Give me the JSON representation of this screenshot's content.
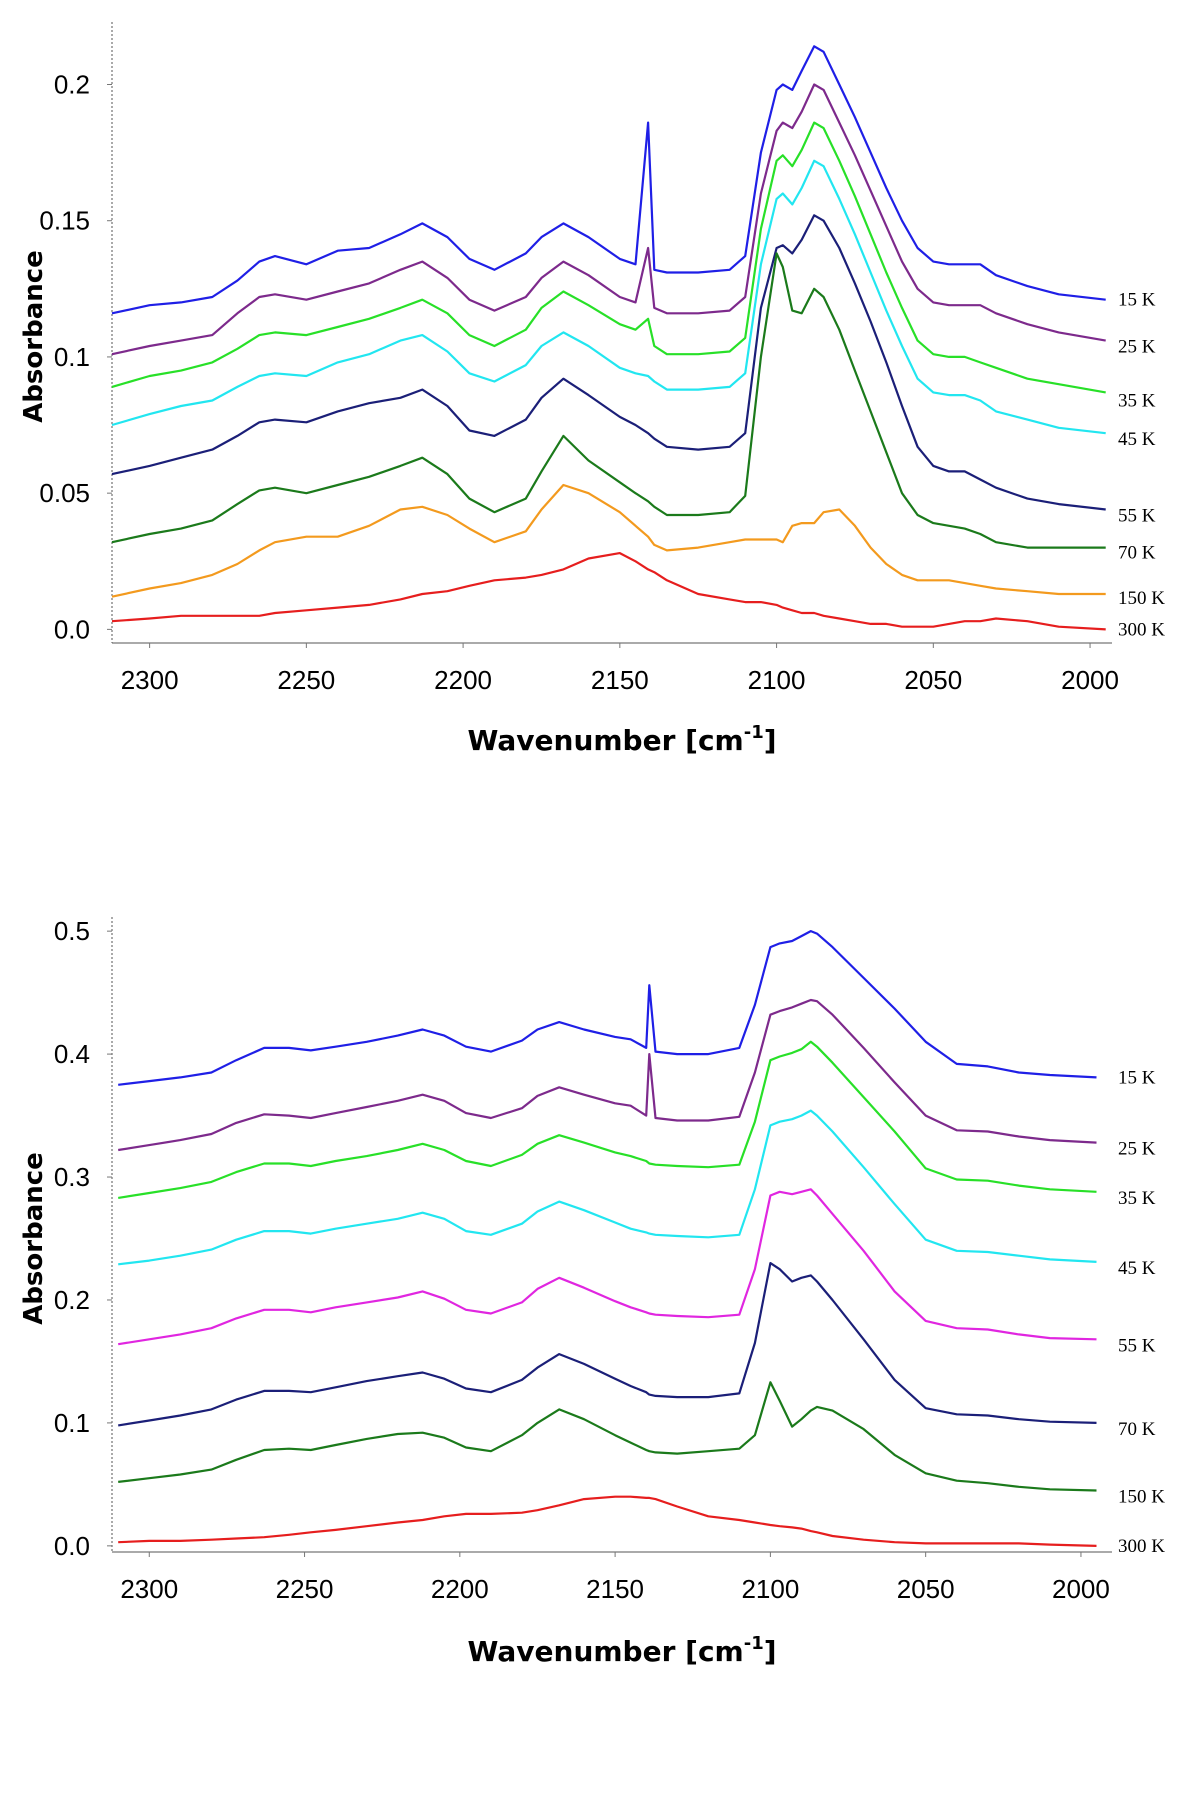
{
  "chart_data": [
    {
      "type": "line",
      "panel": "top",
      "xlabel": "Wavenumber [cm-1]",
      "xlabel_main": "Wavenumber [cm",
      "xlabel_sup": "-1",
      "xlabel_end": "]",
      "ylabel": "Absorbance",
      "xlim": [
        2312,
        1993
      ],
      "ylim": [
        -0.005,
        0.22
      ],
      "x_ticks": [
        2300,
        2250,
        2200,
        2150,
        2100,
        2050,
        2000
      ],
      "x_tick_labels": [
        "2300",
        "2250",
        "2200",
        "2150",
        "2100",
        "2050",
        "2000"
      ],
      "y_ticks": [
        0.0,
        0.05,
        0.1,
        0.15,
        0.2
      ],
      "y_tick_labels": [
        "0.0",
        "0.05",
        "0.1",
        "0.15",
        "0.2"
      ],
      "x": [
        2312,
        2300,
        2290,
        2280,
        2272,
        2265,
        2260,
        2250,
        2240,
        2230,
        2220,
        2213,
        2205,
        2198,
        2190,
        2180,
        2175,
        2168,
        2160,
        2150,
        2145,
        2141,
        2139,
        2135,
        2125,
        2115,
        2110,
        2105,
        2100,
        2098,
        2095,
        2092,
        2088,
        2085,
        2080,
        2075,
        2070,
        2065,
        2060,
        2055,
        2050,
        2045,
        2040,
        2035,
        2030,
        2020,
        2010,
        1995
      ],
      "series": [
        {
          "name": "15 K",
          "label": "15 K",
          "color": "#1f1fe6",
          "values": [
            0.116,
            0.119,
            0.12,
            0.122,
            0.128,
            0.135,
            0.137,
            0.134,
            0.139,
            0.14,
            0.145,
            0.149,
            0.144,
            0.136,
            0.132,
            0.138,
            0.144,
            0.149,
            0.144,
            0.136,
            0.134,
            0.186,
            0.132,
            0.131,
            0.131,
            0.132,
            0.137,
            0.175,
            0.198,
            0.2,
            0.198,
            0.205,
            0.214,
            0.212,
            0.2,
            0.188,
            0.175,
            0.162,
            0.15,
            0.14,
            0.135,
            0.134,
            0.134,
            0.134,
            0.13,
            0.126,
            0.123,
            0.121
          ]
        },
        {
          "name": "25 K",
          "label": "25 K",
          "color": "#7d2a8c",
          "values": [
            0.101,
            0.104,
            0.106,
            0.108,
            0.116,
            0.122,
            0.123,
            0.121,
            0.124,
            0.127,
            0.132,
            0.135,
            0.129,
            0.121,
            0.117,
            0.122,
            0.129,
            0.135,
            0.13,
            0.122,
            0.12,
            0.14,
            0.118,
            0.116,
            0.116,
            0.117,
            0.122,
            0.16,
            0.183,
            0.186,
            0.184,
            0.19,
            0.2,
            0.198,
            0.186,
            0.174,
            0.161,
            0.148,
            0.135,
            0.125,
            0.12,
            0.119,
            0.119,
            0.119,
            0.116,
            0.112,
            0.109,
            0.106
          ]
        },
        {
          "name": "35 K",
          "label": "35 K",
          "color": "#28e028",
          "values": [
            0.089,
            0.093,
            0.095,
            0.098,
            0.103,
            0.108,
            0.109,
            0.108,
            0.111,
            0.114,
            0.118,
            0.121,
            0.116,
            0.108,
            0.104,
            0.11,
            0.118,
            0.124,
            0.119,
            0.112,
            0.11,
            0.114,
            0.104,
            0.101,
            0.101,
            0.102,
            0.107,
            0.147,
            0.172,
            0.174,
            0.17,
            0.176,
            0.186,
            0.184,
            0.172,
            0.159,
            0.145,
            0.131,
            0.118,
            0.106,
            0.101,
            0.1,
            0.1,
            0.098,
            0.096,
            0.092,
            0.09,
            0.087
          ]
        },
        {
          "name": "45 K",
          "label": "45 K",
          "color": "#22e6f0",
          "values": [
            0.075,
            0.079,
            0.082,
            0.084,
            0.089,
            0.093,
            0.094,
            0.093,
            0.098,
            0.101,
            0.106,
            0.108,
            0.102,
            0.094,
            0.091,
            0.097,
            0.104,
            0.109,
            0.104,
            0.096,
            0.094,
            0.093,
            0.091,
            0.088,
            0.088,
            0.089,
            0.094,
            0.134,
            0.158,
            0.16,
            0.156,
            0.162,
            0.172,
            0.17,
            0.158,
            0.145,
            0.131,
            0.117,
            0.104,
            0.092,
            0.087,
            0.086,
            0.086,
            0.084,
            0.08,
            0.077,
            0.074,
            0.072
          ]
        },
        {
          "name": "55 K",
          "label": "55 K",
          "color": "#1b1f78",
          "values": [
            0.057,
            0.06,
            0.063,
            0.066,
            0.071,
            0.076,
            0.077,
            0.076,
            0.08,
            0.083,
            0.085,
            0.088,
            0.082,
            0.073,
            0.071,
            0.077,
            0.085,
            0.092,
            0.086,
            0.078,
            0.075,
            0.072,
            0.07,
            0.067,
            0.066,
            0.067,
            0.072,
            0.118,
            0.14,
            0.141,
            0.138,
            0.143,
            0.152,
            0.15,
            0.14,
            0.127,
            0.113,
            0.098,
            0.082,
            0.067,
            0.06,
            0.058,
            0.058,
            0.055,
            0.052,
            0.048,
            0.046,
            0.044
          ]
        },
        {
          "name": "70 K",
          "label": "70 K",
          "color": "#1b7a1b",
          "values": [
            0.032,
            0.035,
            0.037,
            0.04,
            0.046,
            0.051,
            0.052,
            0.05,
            0.053,
            0.056,
            0.06,
            0.063,
            0.057,
            0.048,
            0.043,
            0.048,
            0.058,
            0.071,
            0.062,
            0.054,
            0.05,
            0.047,
            0.045,
            0.042,
            0.042,
            0.043,
            0.049,
            0.1,
            0.138,
            0.133,
            0.117,
            0.116,
            0.125,
            0.122,
            0.11,
            0.095,
            0.08,
            0.065,
            0.05,
            0.042,
            0.039,
            0.038,
            0.037,
            0.035,
            0.032,
            0.03,
            0.03,
            0.03
          ]
        },
        {
          "name": "150 K",
          "label": "150 K",
          "color": "#f39a1e",
          "values": [
            0.012,
            0.015,
            0.017,
            0.02,
            0.024,
            0.029,
            0.032,
            0.034,
            0.034,
            0.038,
            0.044,
            0.045,
            0.042,
            0.037,
            0.032,
            0.036,
            0.044,
            0.053,
            0.05,
            0.043,
            0.038,
            0.034,
            0.031,
            0.029,
            0.03,
            0.032,
            0.033,
            0.033,
            0.033,
            0.032,
            0.038,
            0.039,
            0.039,
            0.043,
            0.044,
            0.038,
            0.03,
            0.024,
            0.02,
            0.018,
            0.018,
            0.018,
            0.017,
            0.016,
            0.015,
            0.014,
            0.013,
            0.013
          ]
        },
        {
          "name": "300 K",
          "label": "300 K",
          "color": "#e61e1e",
          "values": [
            0.003,
            0.004,
            0.005,
            0.005,
            0.005,
            0.005,
            0.006,
            0.007,
            0.008,
            0.009,
            0.011,
            0.013,
            0.014,
            0.016,
            0.018,
            0.019,
            0.02,
            0.022,
            0.026,
            0.028,
            0.025,
            0.022,
            0.021,
            0.018,
            0.013,
            0.011,
            0.01,
            0.01,
            0.009,
            0.008,
            0.007,
            0.006,
            0.006,
            0.005,
            0.004,
            0.003,
            0.002,
            0.002,
            0.001,
            0.001,
            0.001,
            0.002,
            0.003,
            0.003,
            0.004,
            0.003,
            0.001,
            0.0
          ]
        }
      ]
    },
    {
      "type": "line",
      "panel": "bottom",
      "xlabel": "Wavenumber [cm-1]",
      "xlabel_main": "Wavenumber [cm",
      "xlabel_sup": "-1",
      "xlabel_end": "]",
      "ylabel": "Absorbance",
      "xlim": [
        2312,
        1990
      ],
      "ylim": [
        -0.005,
        0.505
      ],
      "x_ticks": [
        2300,
        2250,
        2200,
        2150,
        2100,
        2050,
        2000
      ],
      "x_tick_labels": [
        "2300",
        "2250",
        "2200",
        "2150",
        "2100",
        "2050",
        "2000"
      ],
      "y_ticks": [
        0.0,
        0.1,
        0.2,
        0.3,
        0.4,
        0.5
      ],
      "y_tick_labels": [
        "0.0",
        "0.1",
        "0.2",
        "0.3",
        "0.4",
        "0.5"
      ],
      "x": [
        2310,
        2300,
        2290,
        2280,
        2272,
        2263,
        2255,
        2248,
        2240,
        2230,
        2220,
        2212,
        2205,
        2198,
        2190,
        2180,
        2175,
        2168,
        2160,
        2150,
        2145,
        2140,
        2139,
        2137,
        2130,
        2120,
        2110,
        2105,
        2100,
        2097,
        2093,
        2090,
        2087,
        2085,
        2080,
        2070,
        2060,
        2050,
        2040,
        2030,
        2020,
        2010,
        1995
      ],
      "series": [
        {
          "name": "15 K",
          "label": "15 K",
          "color": "#1f1fe6",
          "values": [
            0.375,
            0.378,
            0.381,
            0.385,
            0.395,
            0.405,
            0.405,
            0.403,
            0.406,
            0.41,
            0.415,
            0.42,
            0.415,
            0.406,
            0.402,
            0.411,
            0.42,
            0.426,
            0.42,
            0.414,
            0.412,
            0.405,
            0.456,
            0.402,
            0.4,
            0.4,
            0.405,
            0.44,
            0.487,
            0.49,
            0.492,
            0.496,
            0.5,
            0.498,
            0.487,
            0.462,
            0.437,
            0.41,
            0.392,
            0.39,
            0.385,
            0.383,
            0.381
          ]
        },
        {
          "name": "25 K",
          "label": "25 K",
          "color": "#7d2a8c",
          "values": [
            0.322,
            0.326,
            0.33,
            0.335,
            0.344,
            0.351,
            0.35,
            0.348,
            0.352,
            0.357,
            0.362,
            0.367,
            0.362,
            0.352,
            0.348,
            0.356,
            0.366,
            0.373,
            0.367,
            0.36,
            0.358,
            0.35,
            0.4,
            0.348,
            0.346,
            0.346,
            0.349,
            0.385,
            0.432,
            0.435,
            0.438,
            0.441,
            0.444,
            0.443,
            0.432,
            0.405,
            0.377,
            0.35,
            0.338,
            0.337,
            0.333,
            0.33,
            0.328
          ]
        },
        {
          "name": "35 K",
          "label": "35 K",
          "color": "#28e028",
          "values": [
            0.283,
            0.287,
            0.291,
            0.296,
            0.304,
            0.311,
            0.311,
            0.309,
            0.313,
            0.317,
            0.322,
            0.327,
            0.322,
            0.313,
            0.309,
            0.318,
            0.327,
            0.334,
            0.328,
            0.32,
            0.317,
            0.313,
            0.311,
            0.31,
            0.309,
            0.308,
            0.31,
            0.345,
            0.395,
            0.398,
            0.401,
            0.404,
            0.41,
            0.406,
            0.393,
            0.365,
            0.337,
            0.307,
            0.298,
            0.297,
            0.293,
            0.29,
            0.288
          ]
        },
        {
          "name": "45 K",
          "label": "45 K",
          "color": "#22e6f0",
          "values": [
            0.229,
            0.232,
            0.236,
            0.241,
            0.249,
            0.256,
            0.256,
            0.254,
            0.258,
            0.262,
            0.266,
            0.271,
            0.266,
            0.256,
            0.253,
            0.262,
            0.272,
            0.28,
            0.273,
            0.263,
            0.258,
            0.255,
            0.254,
            0.253,
            0.252,
            0.251,
            0.253,
            0.29,
            0.342,
            0.345,
            0.347,
            0.35,
            0.354,
            0.35,
            0.337,
            0.308,
            0.278,
            0.249,
            0.24,
            0.239,
            0.236,
            0.233,
            0.231
          ]
        },
        {
          "name": "55 K",
          "label": "55 K",
          "color": "#e026e0",
          "values": [
            0.164,
            0.168,
            0.172,
            0.177,
            0.185,
            0.192,
            0.192,
            0.19,
            0.194,
            0.198,
            0.202,
            0.207,
            0.201,
            0.192,
            0.189,
            0.198,
            0.209,
            0.218,
            0.21,
            0.199,
            0.194,
            0.19,
            0.189,
            0.188,
            0.187,
            0.186,
            0.188,
            0.225,
            0.285,
            0.288,
            0.286,
            0.288,
            0.29,
            0.285,
            0.27,
            0.24,
            0.207,
            0.183,
            0.177,
            0.176,
            0.172,
            0.169,
            0.168
          ]
        },
        {
          "name": "70 K",
          "label": "70 K",
          "color": "#1b1f78",
          "values": [
            0.098,
            0.102,
            0.106,
            0.111,
            0.119,
            0.126,
            0.126,
            0.125,
            0.129,
            0.134,
            0.138,
            0.141,
            0.136,
            0.128,
            0.125,
            0.135,
            0.145,
            0.156,
            0.148,
            0.136,
            0.13,
            0.125,
            0.123,
            0.122,
            0.121,
            0.121,
            0.124,
            0.165,
            0.23,
            0.225,
            0.215,
            0.218,
            0.22,
            0.215,
            0.2,
            0.168,
            0.135,
            0.112,
            0.107,
            0.106,
            0.103,
            0.101,
            0.1
          ]
        },
        {
          "name": "150 K",
          "label": "150 K",
          "color": "#1b7a1b",
          "values": [
            0.052,
            0.055,
            0.058,
            0.062,
            0.07,
            0.078,
            0.079,
            0.078,
            0.082,
            0.087,
            0.091,
            0.092,
            0.088,
            0.08,
            0.077,
            0.09,
            0.1,
            0.111,
            0.103,
            0.09,
            0.084,
            0.078,
            0.077,
            0.076,
            0.075,
            0.077,
            0.079,
            0.09,
            0.133,
            0.118,
            0.097,
            0.103,
            0.11,
            0.113,
            0.11,
            0.095,
            0.074,
            0.059,
            0.053,
            0.051,
            0.048,
            0.046,
            0.045
          ]
        },
        {
          "name": "300 K",
          "label": "300 K",
          "color": "#e61e1e",
          "values": [
            0.003,
            0.004,
            0.004,
            0.005,
            0.006,
            0.007,
            0.009,
            0.011,
            0.013,
            0.016,
            0.019,
            0.021,
            0.024,
            0.026,
            0.026,
            0.027,
            0.029,
            0.033,
            0.038,
            0.04,
            0.04,
            0.039,
            0.039,
            0.038,
            0.032,
            0.024,
            0.021,
            0.019,
            0.017,
            0.016,
            0.015,
            0.014,
            0.012,
            0.011,
            0.008,
            0.005,
            0.003,
            0.002,
            0.002,
            0.002,
            0.002,
            0.001,
            0.0
          ]
        }
      ]
    }
  ]
}
